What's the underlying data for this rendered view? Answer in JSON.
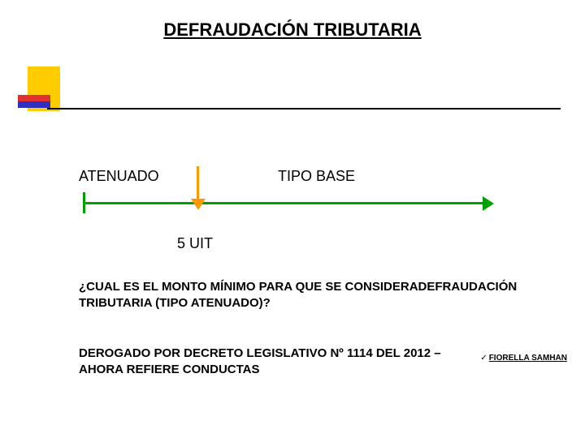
{
  "title": {
    "text": "DEFRAUDACIÓN TRIBUTARIA",
    "fontsize": 22,
    "color": "#000000"
  },
  "logo": {
    "yellow": "#ffcc00",
    "red": "#e03030",
    "blue": "#3030c0"
  },
  "timeline": {
    "left_label": "ATENUADO",
    "right_label": "TIPO BASE",
    "label_fontsize": 18,
    "line_color": "#00a000",
    "divider_color": "#ff9900",
    "divider_label": "5 UIT",
    "divider_fontsize": 18
  },
  "body": {
    "question": "¿CUAL ES EL MONTO MÍNIMO PARA QUE SE CONSIDERADEFRAUDACIÓN TRIBUTARIA (TIPO ATENUADO)?",
    "note": "DEROGADO POR DECRETO LEGISLATIVO Nº 1114 DEL 2012 – AHORA REFIERE CONDUCTAS",
    "fontsize": 15
  },
  "footer": {
    "checkmark": "✓",
    "credit": "FIORELLA SAMHAN",
    "fontsize": 10
  }
}
